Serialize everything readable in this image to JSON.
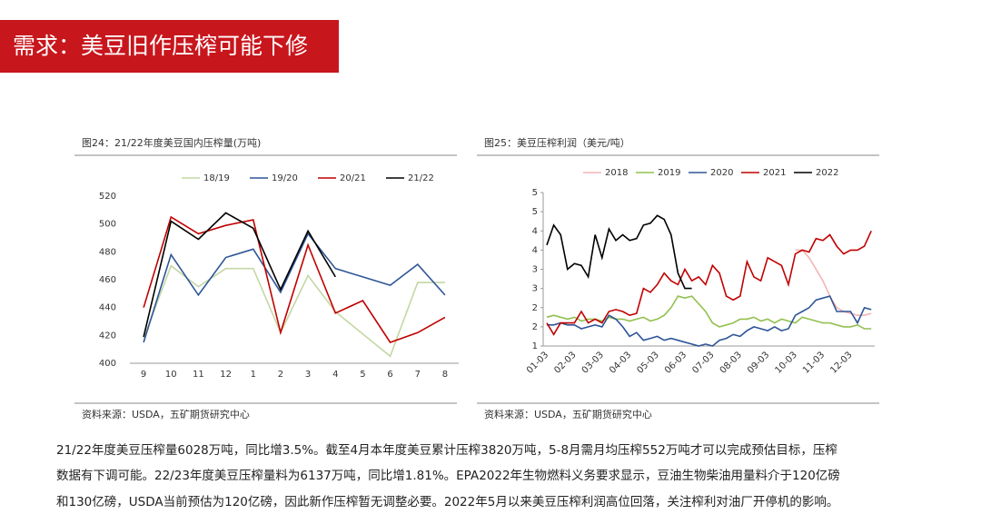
{
  "header": {
    "title": "需求：美豆旧作压榨可能下修"
  },
  "chart_data": [
    {
      "type": "line",
      "title": "图24：21/22年度美豆国内压榨量(万吨)",
      "source": "资料来源：USDA，五矿期货研究中心",
      "categories": [
        "9",
        "10",
        "11",
        "12",
        "1",
        "2",
        "3",
        "4",
        "5",
        "6",
        "7",
        "8"
      ],
      "series": [
        {
          "name": "18/19",
          "color": "#c4d7a4",
          "values": [
            418,
            470,
            455,
            468,
            468,
            422,
            463,
            437,
            421,
            405,
            458,
            458
          ]
        },
        {
          "name": "19/20",
          "color": "#2e5597",
          "values": [
            415,
            478,
            449,
            476,
            482,
            451,
            493,
            468,
            462,
            456,
            471,
            449
          ]
        },
        {
          "name": "20/21",
          "color": "#c00000",
          "values": [
            440,
            505,
            493,
            499,
            503,
            422,
            485,
            436,
            445,
            415,
            422,
            433
          ]
        },
        {
          "name": "21/22",
          "color": "#000000",
          "values": [
            419,
            502,
            489,
            508,
            497,
            453,
            495,
            462,
            null,
            null,
            null,
            null
          ]
        }
      ],
      "ylim": [
        400,
        520
      ],
      "yticks": [
        400,
        420,
        440,
        460,
        480,
        500,
        520
      ],
      "legend": "top"
    },
    {
      "type": "line",
      "title": "图25：美豆压榨利润（美元/吨）",
      "source": "资料来源：USDA，五矿期货研究中心",
      "categories": [
        "01-03",
        null,
        null,
        null,
        "02-03",
        null,
        null,
        null,
        "03-03",
        null,
        null,
        null,
        "04-03",
        null,
        null,
        null,
        "05-03",
        null,
        null,
        null,
        "06-03",
        null,
        null,
        null,
        "07-03",
        null,
        null,
        null,
        "08-03",
        null,
        null,
        null,
        "09-03",
        null,
        null,
        null,
        "10-03",
        null,
        null,
        null,
        "11-03",
        null,
        null,
        null,
        "12-03",
        null,
        null,
        null
      ],
      "series": [
        {
          "name": "2018",
          "color": "#f4b4b4",
          "values": [
            null,
            null,
            null,
            null,
            null,
            null,
            null,
            null,
            null,
            null,
            null,
            null,
            null,
            null,
            null,
            null,
            null,
            null,
            null,
            null,
            null,
            null,
            null,
            null,
            null,
            null,
            null,
            null,
            null,
            null,
            null,
            null,
            null,
            null,
            null,
            null,
            3.5,
            3.5,
            3.3,
            3.0,
            2.7,
            2.3,
            2.0,
            1.9,
            1.85,
            1.8,
            1.8,
            1.85
          ]
        },
        {
          "name": "2019",
          "color": "#92c050",
          "values": [
            1.75,
            1.8,
            1.75,
            1.7,
            1.75,
            1.65,
            1.7,
            1.7,
            1.65,
            1.75,
            1.7,
            1.7,
            1.65,
            1.7,
            1.75,
            1.65,
            1.7,
            1.8,
            2.0,
            2.3,
            2.25,
            2.3,
            2.1,
            1.9,
            1.6,
            1.5,
            1.55,
            1.6,
            1.7,
            1.7,
            1.75,
            1.65,
            1.7,
            1.6,
            1.7,
            1.65,
            1.6,
            1.75,
            1.7,
            1.65,
            1.6,
            1.6,
            1.55,
            1.5,
            1.5,
            1.55,
            1.45,
            1.45
          ]
        },
        {
          "name": "2020",
          "color": "#2e5597",
          "values": [
            1.55,
            1.55,
            1.6,
            1.55,
            1.55,
            1.45,
            1.5,
            1.55,
            1.5,
            1.8,
            1.7,
            1.5,
            1.25,
            1.35,
            1.15,
            1.2,
            1.25,
            1.15,
            1.2,
            1.15,
            1.1,
            1.05,
            1.0,
            1.05,
            1.0,
            1.15,
            1.2,
            1.3,
            1.25,
            1.4,
            1.5,
            1.45,
            1.4,
            1.5,
            1.4,
            1.45,
            1.8,
            1.9,
            2.0,
            2.2,
            2.25,
            2.3,
            1.9,
            1.9,
            1.9,
            1.6,
            2.0,
            1.95
          ]
        },
        {
          "name": "2021",
          "color": "#c00000",
          "values": [
            1.6,
            1.3,
            1.6,
            1.6,
            1.6,
            1.9,
            1.6,
            1.7,
            1.6,
            1.9,
            1.95,
            1.9,
            1.8,
            1.85,
            2.5,
            2.4,
            2.6,
            2.9,
            2.7,
            2.6,
            3.0,
            2.7,
            2.8,
            2.6,
            3.1,
            2.9,
            2.3,
            2.2,
            2.3,
            3.2,
            2.8,
            2.7,
            3.3,
            3.2,
            3.1,
            2.6,
            3.4,
            3.5,
            3.45,
            3.8,
            3.75,
            3.9,
            3.6,
            3.4,
            3.5,
            3.5,
            3.6,
            4.0
          ]
        },
        {
          "name": "2022",
          "color": "#000000",
          "values": [
            3.63,
            4.15,
            3.9,
            3.0,
            3.15,
            3.1,
            2.8,
            3.9,
            3.3,
            4.05,
            3.75,
            3.9,
            3.75,
            3.8,
            4.15,
            4.2,
            4.4,
            4.3,
            3.9,
            2.9,
            2.5,
            2.5,
            null,
            null,
            null,
            null,
            null,
            null,
            null,
            null,
            null,
            null,
            null,
            null,
            null,
            null,
            null,
            null,
            null,
            null,
            null,
            null,
            null,
            null,
            null,
            null,
            null,
            null
          ]
        }
      ],
      "ylim": [
        1,
        5
      ],
      "yticks": [
        1,
        {
          "value": 1.5,
          "label": "2"
        },
        2,
        {
          "value": 2.5,
          "label": "3"
        },
        3,
        {
          "value": 3.5,
          "label": "4"
        },
        4,
        {
          "value": 4.5,
          "label": "5"
        },
        5
      ],
      "legend": "top"
    }
  ],
  "paragraph": [
    "21/22年度美豆压榨量6028万吨，同比增3.5%。截至4月本年度美豆累计压榨3820万吨，5-8月需月均压榨552万吨才可以完成预估目标，压榨",
    "数据有下调可能。22/23年度美豆压榨量料为6137万吨，同比增1.81%。EPA2022年生物燃料义务要求显示，豆油生物柴油用量料介于120亿磅",
    "和130亿磅，USDA当前预估为120亿磅，因此新作压榨暂无调整必要。2022年5月以来美豆压榨利润高位回落，关注榨利对油厂开停机的影响。"
  ]
}
